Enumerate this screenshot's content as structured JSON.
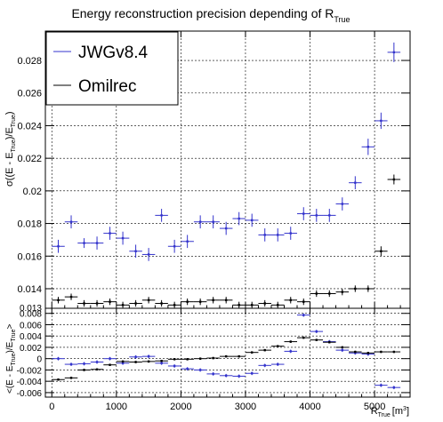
{
  "chart_data": [
    {
      "type": "scatter",
      "title": "Energy reconstruction precision depending of R",
      "title_sub": "True",
      "ylabel": "σ((E - E",
      "ylabel_sub1": "True",
      "ylabel_mid": ")/E",
      "ylabel_sub2": "True",
      "ylabel_end": ")",
      "xlim": [
        -100,
        5550
      ],
      "ylim": [
        0.0128,
        0.0298
      ],
      "yticks": [
        "0.014",
        "0.016",
        "0.018",
        "0.02",
        "0.022",
        "0.024",
        "0.026",
        "0.028"
      ],
      "bottom_tick_partial": "0.013",
      "grid": true,
      "legend_position": "top-left",
      "x_bin_halfwidth": 100,
      "series": [
        {
          "name": "JWGv8.4",
          "color": "#3333cc",
          "x": [
            100,
            300,
            500,
            700,
            900,
            1100,
            1300,
            1500,
            1700,
            1900,
            2100,
            2300,
            2500,
            2700,
            2900,
            3100,
            3300,
            3500,
            3700,
            3900,
            4100,
            4300,
            4500,
            4700,
            4900,
            5100,
            5300
          ],
          "y": [
            0.0166,
            0.0181,
            0.0168,
            0.0168,
            0.0174,
            0.0171,
            0.0163,
            0.0161,
            0.0185,
            0.0166,
            0.0169,
            0.0181,
            0.0181,
            0.0177,
            0.0183,
            0.0182,
            0.0173,
            0.0173,
            0.0174,
            0.0186,
            0.0185,
            0.0185,
            0.0192,
            0.0205,
            0.0227,
            0.0243,
            0.0285
          ],
          "yerr": [
            0.0004,
            0.0004,
            0.0003,
            0.0004,
            0.0004,
            0.0004,
            0.0004,
            0.0004,
            0.0004,
            0.0004,
            0.0004,
            0.0004,
            0.0004,
            0.0004,
            0.0004,
            0.0004,
            0.0004,
            0.0004,
            0.0004,
            0.0004,
            0.0004,
            0.0004,
            0.0004,
            0.0004,
            0.0005,
            0.0005,
            0.0006
          ]
        },
        {
          "name": "Omilrec",
          "color": "#000000",
          "x": [
            100,
            300,
            500,
            700,
            900,
            1100,
            1300,
            1500,
            1700,
            1900,
            2100,
            2300,
            2500,
            2700,
            2900,
            3100,
            3300,
            3500,
            3700,
            3900,
            4100,
            4300,
            4500,
            4700,
            4900,
            5100,
            5300
          ],
          "y": [
            0.0133,
            0.0135,
            0.0131,
            0.0131,
            0.0132,
            0.013,
            0.0131,
            0.0133,
            0.0131,
            0.013,
            0.0132,
            0.0132,
            0.0133,
            0.0133,
            0.013,
            0.013,
            0.0131,
            0.013,
            0.0133,
            0.0132,
            0.0137,
            0.0137,
            0.0138,
            0.014,
            0.014,
            0.0163,
            0.0207
          ],
          "yerr": [
            0.0002,
            0.0002,
            0.0002,
            0.0002,
            0.0002,
            0.0002,
            0.0002,
            0.0002,
            0.0002,
            0.0002,
            0.0002,
            0.0002,
            0.0002,
            0.0002,
            0.0002,
            0.0002,
            0.0002,
            0.0002,
            0.0002,
            0.0002,
            0.0002,
            0.0002,
            0.0002,
            0.0002,
            0.0002,
            0.0003,
            0.0003
          ]
        }
      ]
    },
    {
      "type": "scatter",
      "xlabel": "R",
      "xlabel_sub": "True",
      "xlabel_unit": "[m",
      "xlabel_sup": "3",
      "xlabel_close": "]",
      "ylabel": "<(E - E",
      "ylabel_sub1": "True",
      "ylabel_mid": ")/E",
      "ylabel_sub2": "True",
      "ylabel_end": ">",
      "xlim": [
        -100,
        5550
      ],
      "ylim": [
        -0.0068,
        0.0089
      ],
      "xticks": [
        "0",
        "1000",
        "2000",
        "3000",
        "4000",
        "5000"
      ],
      "yticks": [
        "-0.006",
        "-0.004",
        "-0.002",
        "0",
        "0.002",
        "0.004",
        "0.006",
        "0.008"
      ],
      "grid": true,
      "x_bin_halfwidth": 100,
      "series": [
        {
          "name": "JWGv8.4",
          "color": "#3333cc",
          "x": [
            100,
            300,
            500,
            700,
            900,
            1100,
            1300,
            1500,
            1700,
            1900,
            2100,
            2300,
            2500,
            2700,
            2900,
            3100,
            3300,
            3500,
            3700,
            3900,
            4100,
            4300,
            4500,
            4700,
            4900,
            5100,
            5300
          ],
          "y": [
            0.0,
            -0.001,
            -0.0009,
            -0.0006,
            0.0,
            -0.0008,
            0.0003,
            0.0004,
            -0.0008,
            -0.0013,
            -0.0018,
            -0.002,
            -0.0027,
            -0.003,
            -0.0031,
            -0.0026,
            -0.0012,
            -0.001,
            0.0013,
            0.0077,
            0.0048,
            0.003,
            0.0015,
            0.001,
            0.0008,
            -0.0047,
            -0.0051
          ],
          "yerr": [
            0.0003,
            0.0003,
            0.0003,
            0.0003,
            0.0003,
            0.0003,
            0.0003,
            0.0003,
            0.0003,
            0.0003,
            0.0003,
            0.0003,
            0.0003,
            0.0003,
            0.0003,
            0.0003,
            0.0003,
            0.0003,
            0.0003,
            0.0003,
            0.0003,
            0.0003,
            0.0003,
            0.0003,
            0.0003,
            0.0003,
            0.0003
          ]
        },
        {
          "name": "Omilrec",
          "color": "#000000",
          "x": [
            100,
            300,
            500,
            700,
            900,
            1100,
            1300,
            1500,
            1700,
            1900,
            2100,
            2300,
            2500,
            2700,
            2900,
            3100,
            3300,
            3500,
            3700,
            3900,
            4100,
            4300,
            4500,
            4700,
            4900,
            5100,
            5300
          ],
          "y": [
            -0.0037,
            -0.0034,
            -0.002,
            -0.0019,
            -0.0011,
            -0.0005,
            -0.0006,
            -0.0005,
            -0.0004,
            -0.0001,
            -0.0001,
            0.0,
            0.0001,
            0.0004,
            0.0004,
            0.0011,
            0.0015,
            0.0022,
            0.003,
            0.0037,
            0.0033,
            0.0029,
            0.002,
            0.0012,
            0.001,
            0.0012,
            0.0012
          ],
          "yerr": [
            0.0002,
            0.0002,
            0.0002,
            0.0002,
            0.0002,
            0.0002,
            0.0002,
            0.0002,
            0.0002,
            0.0002,
            0.0002,
            0.0002,
            0.0002,
            0.0002,
            0.0002,
            0.0002,
            0.0002,
            0.0002,
            0.0002,
            0.0002,
            0.0002,
            0.0002,
            0.0002,
            0.0002,
            0.0002,
            0.0002,
            0.0002
          ]
        }
      ]
    }
  ]
}
